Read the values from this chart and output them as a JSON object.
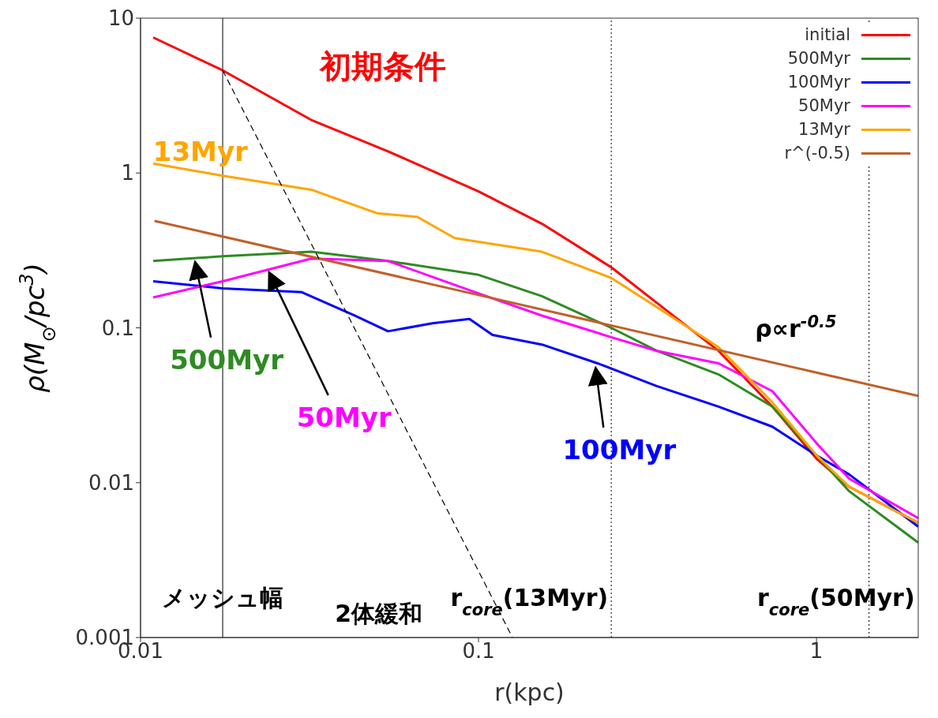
{
  "chart_data": {
    "type": "line",
    "xlabel": "r(kpc)",
    "ylabel": "ρ(M$_{⊙}$/pc$^{3}$)",
    "log": "xy",
    "xlim": [
      0.01,
      2
    ],
    "xticks": [
      0.01,
      0.1,
      1
    ],
    "ylim": [
      0.001,
      10
    ],
    "yticks": [
      0.001,
      0.01,
      0.1,
      1,
      10
    ],
    "grid": false,
    "legend": "top right",
    "marker": "none",
    "series": [
      {
        "name": "initial",
        "color": "#ff0000",
        "x": [
          0.0109,
          0.0175,
          0.032,
          0.054,
          0.1,
          0.154,
          0.247,
          0.337,
          0.513,
          0.74,
          1,
          1.25,
          2
        ],
        "values": [
          7.5,
          4.6,
          2.2,
          1.38,
          0.76,
          0.47,
          0.246,
          0.145,
          0.071,
          0.031,
          0.0143,
          0.0094,
          0.0055
        ]
      },
      {
        "name": "500Myr",
        "color": "#2e8b22",
        "x": [
          0.0109,
          0.0175,
          0.032,
          0.054,
          0.1,
          0.154,
          0.247,
          0.337,
          0.513,
          0.74,
          1,
          1.25,
          2
        ],
        "values": [
          0.27,
          0.29,
          0.31,
          0.27,
          0.22,
          0.16,
          0.1,
          0.071,
          0.05,
          0.031,
          0.015,
          0.0088,
          0.0041
        ]
      },
      {
        "name": "100Myr",
        "color": "#0000ff",
        "x": [
          0.0109,
          0.0175,
          0.03,
          0.043,
          0.054,
          0.073,
          0.094,
          0.11,
          0.154,
          0.225,
          0.337,
          0.513,
          0.74,
          1,
          1.25,
          2
        ],
        "values": [
          0.2,
          0.18,
          0.17,
          0.12,
          0.095,
          0.107,
          0.114,
          0.09,
          0.078,
          0.059,
          0.042,
          0.031,
          0.023,
          0.015,
          0.0113,
          0.0052
        ]
      },
      {
        "name": "50Myr",
        "color": "#ff00ff",
        "x": [
          0.0109,
          0.0175,
          0.032,
          0.054,
          0.1,
          0.154,
          0.247,
          0.337,
          0.513,
          0.74,
          1,
          1.25,
          2
        ],
        "values": [
          0.157,
          0.2,
          0.28,
          0.27,
          0.167,
          0.12,
          0.087,
          0.071,
          0.059,
          0.039,
          0.018,
          0.0106,
          0.0059
        ]
      },
      {
        "name": "13Myr",
        "color": "#ffa500",
        "x": [
          0.0109,
          0.0175,
          0.032,
          0.05,
          0.066,
          0.085,
          0.154,
          0.247,
          0.337,
          0.513,
          0.74,
          1,
          1.25,
          2
        ],
        "values": [
          1.15,
          0.96,
          0.78,
          0.55,
          0.52,
          0.38,
          0.31,
          0.21,
          0.136,
          0.075,
          0.033,
          0.015,
          0.0094,
          0.0055
        ]
      },
      {
        "name": "r^(-0.5)",
        "color": "#c0602a",
        "x": [
          0.011,
          0.1,
          1,
          2
        ],
        "values": [
          0.49,
          0.163,
          0.0514,
          0.0363
        ]
      },
      {
        "color": "#000000",
        "line_style": "dashed",
        "x": [
          0.0175,
          0.126
        ],
        "values": [
          4.6,
          0.001
        ]
      }
    ],
    "ref_lines": [
      {
        "axis": "x",
        "value": 0.0175,
        "color": "#000000",
        "line_style": "solid"
      },
      {
        "axis": "x",
        "value": 0.247,
        "color": "#000000",
        "line_style": "dotted"
      },
      {
        "axis": "x",
        "value": 1.43,
        "color": "#000000",
        "line_style": "dotted"
      }
    ],
    "annotations": [
      "初期条件",
      "13Myr",
      {
        "text": "500Myr",
        "x": 0.0145,
        "y": 0.28
      },
      {
        "text": "50Myr",
        "x": 0.024,
        "y": 0.24
      },
      {
        "text": "100Myr",
        "x": 0.222,
        "y": 0.058
      },
      "ρ∝r$^{-0.5}$",
      {
        "text": "メッシュ幅",
        "x": 0.0175,
        "y": 0.0016
      },
      "2体緩和",
      {
        "text": "r$_{core}$(13Myr)",
        "x": 0.247,
        "y": 0.0016
      },
      {
        "text": "r$_{core}$(50Myr)",
        "x": 1.43,
        "y": 0.0016
      }
    ]
  }
}
